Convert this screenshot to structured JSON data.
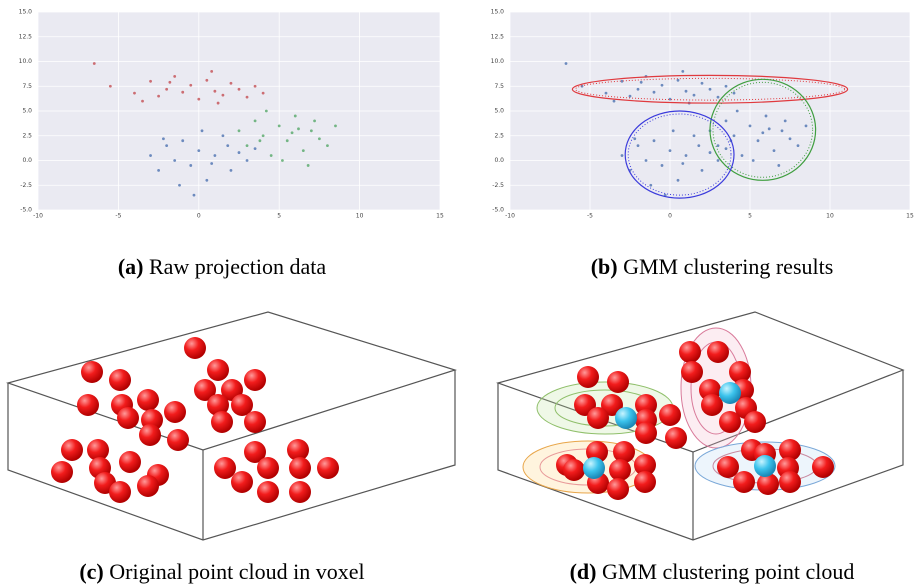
{
  "chart_data": [
    {
      "type": "scatter",
      "xlim": [
        -10,
        15
      ],
      "xticks": [
        -10,
        -5,
        0,
        5,
        10,
        15
      ],
      "ylim": [
        -5,
        15
      ],
      "yticks": [
        {
          "value": -5,
          "label": "-5.0"
        },
        -2.5,
        {
          "value": 0,
          "label": "0.0"
        },
        2.5,
        {
          "value": 5,
          "label": "5.0"
        },
        7.5,
        {
          "value": 10,
          "label": "10.0"
        },
        12.5,
        {
          "value": 15,
          "label": "15.0"
        }
      ],
      "series": [
        {
          "color": "#c44e52",
          "x": [
            -5.5,
            -4,
            -3,
            -2.5,
            -2,
            -1.5,
            -1,
            -0.5,
            0,
            0.5,
            1,
            1.5,
            2,
            2.5,
            3,
            3.5,
            -3.5,
            0.8,
            -1.8,
            1.2,
            -6.5,
            4
          ],
          "y": [
            7.5,
            6.8,
            8,
            6.5,
            7.2,
            8.5,
            6.9,
            7.6,
            6.2,
            8.1,
            7,
            6.6,
            7.8,
            7.2,
            6.4,
            7.5,
            6,
            9,
            7.9,
            5.8,
            9.8,
            6.8
          ]
        },
        {
          "color": "#55a868",
          "x": [
            2.5,
            3,
            3.5,
            4,
            4.5,
            5,
            5.5,
            6,
            6.5,
            7,
            7.5,
            8,
            4.2,
            5.2,
            6.2,
            7.2,
            3.8,
            5.8,
            8.5,
            6.8
          ],
          "y": [
            3,
            1.5,
            4,
            2.5,
            0.5,
            3.5,
            2,
            4.5,
            1,
            3,
            2.2,
            1.5,
            5,
            0,
            3.2,
            4,
            2,
            2.8,
            3.5,
            -0.5
          ]
        },
        {
          "color": "#4c72b0",
          "x": [
            -3,
            -2.5,
            -2,
            -1.5,
            -1,
            -0.5,
            0,
            0.5,
            1,
            1.5,
            2,
            2.5,
            3,
            -1.2,
            0.2,
            1.8,
            -0.3,
            0.8,
            -2.2,
            3.5
          ],
          "y": [
            0.5,
            -1,
            1.5,
            0,
            2,
            -0.5,
            1,
            -2,
            0.5,
            2.5,
            -1,
            0.8,
            0,
            -2.5,
            3,
            1.5,
            -3.5,
            -0.3,
            2.2,
            1.2
          ]
        }
      ]
    },
    {
      "type": "scatter",
      "xlim": [
        -10,
        15
      ],
      "xticks": [
        -10,
        -5,
        0,
        5,
        10,
        15
      ],
      "ylim": [
        -5,
        15
      ],
      "yticks": [
        {
          "value": -5,
          "label": "-5.0"
        },
        -2.5,
        {
          "value": 0,
          "label": "0.0"
        },
        2.5,
        {
          "value": 5,
          "label": "5.0"
        },
        7.5,
        {
          "value": 10,
          "label": "10.0"
        },
        12.5,
        {
          "value": 15,
          "label": "15.0"
        }
      ],
      "series": [
        {
          "color": "#4c72b0",
          "x": [
            -5.5,
            -4,
            -3,
            -2.5,
            -2,
            -1.5,
            -1,
            -0.5,
            0,
            0.5,
            1,
            1.5,
            2,
            2.5,
            3,
            3.5,
            -3.5,
            0.8,
            -1.8,
            1.2,
            -6.5,
            4
          ],
          "y": [
            7.5,
            6.8,
            8,
            6.5,
            7.2,
            8.5,
            6.9,
            7.6,
            6.2,
            8.1,
            7,
            6.6,
            7.8,
            7.2,
            6.4,
            7.5,
            6,
            9,
            7.9,
            5.8,
            9.8,
            6.8
          ]
        },
        {
          "color": "#4c72b0",
          "x": [
            2.5,
            3,
            3.5,
            4,
            4.5,
            5,
            5.5,
            6,
            6.5,
            7,
            7.5,
            8,
            4.2,
            5.2,
            6.2,
            7.2,
            3.8,
            5.8,
            8.5,
            6.8
          ],
          "y": [
            3,
            1.5,
            4,
            2.5,
            0.5,
            3.5,
            2,
            4.5,
            1,
            3,
            2.2,
            1.5,
            5,
            0,
            3.2,
            4,
            2,
            2.8,
            3.5,
            -0.5
          ]
        },
        {
          "color": "#4c72b0",
          "x": [
            -3,
            -2.5,
            -2,
            -1.5,
            -1,
            -0.5,
            0,
            0.5,
            1,
            1.5,
            2,
            2.5,
            3,
            -1.2,
            0.2,
            1.8,
            -0.3,
            0.8,
            -2.2,
            3.5
          ],
          "y": [
            0.5,
            -1,
            1.5,
            0,
            2,
            -0.5,
            1,
            -2,
            0.5,
            2.5,
            -1,
            0.8,
            0,
            -2.5,
            3,
            1.5,
            -3.5,
            -0.3,
            2.2,
            1.2
          ]
        }
      ],
      "ellipses": [
        {
          "color": "#e0393e",
          "cx": 2.5,
          "cy": 7.2,
          "rx": 8.6,
          "ry": 1.4
        },
        {
          "color": "#3f9e3f",
          "cx": 5.8,
          "cy": 3.1,
          "rx": 3.3,
          "ry": 5.1
        },
        {
          "color": "#3b3bdc",
          "cx": 0.6,
          "cy": 0.6,
          "rx": 3.4,
          "ry": 4.4
        }
      ]
    }
  ],
  "captions": [
    {
      "label": "(a)",
      "text": "Raw projection data"
    },
    {
      "label": "(b)",
      "text": "GMM clustering results"
    },
    {
      "label": "(c)",
      "text": "Original point cloud in voxel"
    },
    {
      "label": "(d)",
      "text": "GMM clustering point cloud"
    }
  ]
}
